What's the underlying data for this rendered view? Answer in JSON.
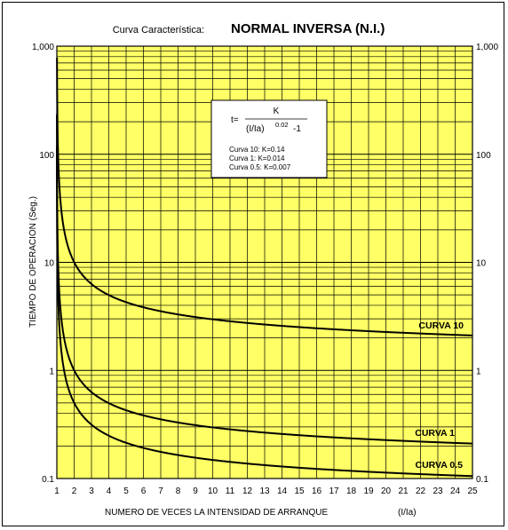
{
  "title_label": "Curva Característica:",
  "title_main": "NORMAL INVERSA (N.I.)",
  "ylabel": "TIEMPO DE OPERACION (Seg.)",
  "xlabel": "NUMERO DE VECES LA INTENSIDAD DE ARRANQUE",
  "xlabel_unit": "(I/Ia)",
  "formula": {
    "t_prefix": "t=",
    "numerator": "K",
    "denominator_base": "(I/Ia)",
    "exponent": "0.02",
    "denominator_tail": "-1"
  },
  "legend_lines": [
    "Curva 10: K=0.14",
    "Curva   1: K=0.014",
    "Curva 0.5: K=0.007"
  ],
  "colors": {
    "plot_bg": "#ffff66",
    "grid": "#000000",
    "curve": "#000000"
  },
  "chart_data": {
    "type": "line",
    "x_scale": "linear",
    "y_scale": "log",
    "xlim": [
      1,
      25
    ],
    "ylim": [
      0.1,
      1000
    ],
    "x_ticks": [
      "1",
      "2",
      "3",
      "4",
      "5",
      "6",
      "7",
      "8",
      "9",
      "10",
      "11",
      "12",
      "13",
      "14",
      "15",
      "16",
      "17",
      "18",
      "19",
      "20",
      "21",
      "22",
      "23",
      "24",
      "25"
    ],
    "y_ticks_left": [
      "1,000",
      "100",
      "10",
      "1",
      "0.1"
    ],
    "y_ticks_right": [
      "1,000",
      "100",
      "10",
      "1",
      "0.1"
    ],
    "y_tick_values": [
      1000,
      100,
      10,
      1,
      0.1
    ],
    "grid": true,
    "formula_kind": "t = K / ((I/Ia)^0.02 - 1)",
    "exponent_value": 0.02,
    "series": [
      {
        "name": "CURVA 10",
        "k": 0.14
      },
      {
        "name": "CURVA 1",
        "k": 0.014
      },
      {
        "name": "CURVA 0.5",
        "k": 0.007
      }
    ]
  }
}
